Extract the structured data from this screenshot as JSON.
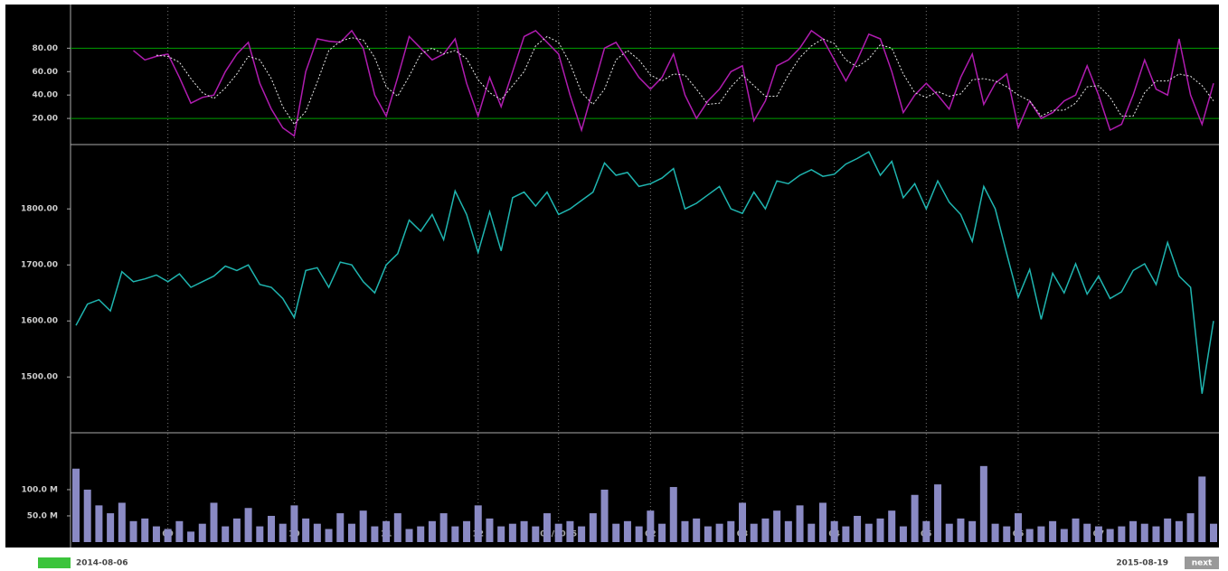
{
  "chart_data": [
    {
      "type": "line",
      "ylim": [
        0,
        115
      ],
      "yticks": [
        {
          "value": 20,
          "label": "20.00"
        },
        {
          "value": 40,
          "label": "40.00"
        },
        {
          "value": 60,
          "label": "60.00"
        },
        {
          "value": 80,
          "label": "80.00"
        }
      ],
      "reference_lines": [
        20,
        80
      ],
      "reference_color": "#00a000",
      "series": [
        {
          "color": "#b01cb0",
          "dashed": false,
          "values": [
            null,
            null,
            null,
            null,
            null,
            78,
            70,
            73,
            75,
            55,
            33,
            38,
            40,
            60,
            75,
            85,
            50,
            28,
            12,
            5,
            60,
            88,
            86,
            85,
            95,
            80,
            40,
            22,
            55,
            90,
            80,
            70,
            75,
            88,
            50,
            22,
            55,
            30,
            60,
            90,
            95,
            85,
            75,
            40,
            10,
            45,
            80,
            85,
            70,
            55,
            45,
            55,
            75,
            40,
            20,
            35,
            45,
            60,
            65,
            18,
            35,
            65,
            70,
            80,
            95,
            88,
            70,
            52,
            70,
            92,
            88,
            60,
            25,
            40,
            50,
            40,
            28,
            55,
            75,
            32,
            50,
            58,
            12,
            35,
            20,
            25,
            35,
            40,
            65,
            40,
            10,
            15,
            40,
            70,
            45,
            40,
            88,
            40,
            15,
            50
          ]
        },
        {
          "color": "#e8e8e8",
          "dashed": true,
          "values": [
            null,
            null,
            null,
            null,
            null,
            null,
            null,
            74,
            73,
            68,
            54,
            42,
            37,
            46,
            58,
            73,
            70,
            54,
            30,
            15,
            26,
            51,
            78,
            86,
            89,
            87,
            72,
            47,
            39,
            56,
            75,
            80,
            75,
            78,
            71,
            53,
            42,
            36,
            48,
            60,
            82,
            90,
            85,
            67,
            42,
            32,
            45,
            70,
            78,
            70,
            57,
            52,
            58,
            57,
            45,
            32,
            33,
            47,
            57,
            48,
            39,
            39,
            57,
            72,
            82,
            88,
            84,
            70,
            64,
            71,
            83,
            80,
            58,
            42,
            38,
            43,
            39,
            41,
            53,
            54,
            52,
            47,
            40,
            35,
            22,
            27,
            27,
            33,
            47,
            48,
            38,
            22,
            22,
            42,
            52,
            52,
            58,
            56,
            48,
            35
          ]
        }
      ]
    },
    {
      "type": "line",
      "ylim": [
        1402,
        1910
      ],
      "yticks": [
        {
          "value": 1500,
          "label": "1500.00"
        },
        {
          "value": 1600,
          "label": "1600.00"
        },
        {
          "value": 1700,
          "label": "1700.00"
        },
        {
          "value": 1800,
          "label": "1800.00"
        }
      ],
      "series": [
        {
          "color": "#1fb5b0",
          "dashed": false,
          "values": [
            1592,
            1630,
            1638,
            1618,
            1688,
            1670,
            1675,
            1682,
            1670,
            1684,
            1660,
            1670,
            1680,
            1698,
            1690,
            1700,
            1665,
            1660,
            1640,
            1606,
            1690,
            1695,
            1660,
            1705,
            1700,
            1670,
            1650,
            1700,
            1720,
            1780,
            1760,
            1790,
            1745,
            1832,
            1790,
            1722,
            1795,
            1725,
            1820,
            1830,
            1805,
            1830,
            1790,
            1800,
            1815,
            1830,
            1882,
            1860,
            1865,
            1840,
            1845,
            1855,
            1872,
            1800,
            1810,
            1825,
            1840,
            1800,
            1792,
            1830,
            1800,
            1850,
            1845,
            1860,
            1870,
            1858,
            1862,
            1880,
            1890,
            1902,
            1860,
            1885,
            1820,
            1845,
            1800,
            1850,
            1812,
            1790,
            1742,
            1840,
            1800,
            1720,
            1642,
            1692,
            1603,
            1685,
            1650,
            1702,
            1648,
            1680,
            1640,
            1652,
            1690,
            1702,
            1665,
            1740,
            1680,
            1660,
            1470,
            1600
          ]
        }
      ]
    },
    {
      "type": "bar",
      "ylim": [
        0,
        205
      ],
      "color": "#8a8ac4",
      "yticks": [
        {
          "value": 50,
          "label": "50.0 M"
        },
        {
          "value": 100,
          "label": "100.0 M"
        }
      ],
      "categories": [
        null,
        null,
        null,
        null,
        null,
        null,
        null,
        null,
        "09",
        null,
        null,
        null,
        null,
        null,
        null,
        null,
        null,
        null,
        null,
        "10",
        null,
        null,
        null,
        null,
        null,
        null,
        null,
        "11",
        null,
        null,
        null,
        null,
        null,
        null,
        null,
        "12",
        null,
        null,
        null,
        null,
        null,
        null,
        "01/2015",
        null,
        null,
        null,
        null,
        null,
        null,
        null,
        "02",
        null,
        null,
        null,
        null,
        null,
        null,
        null,
        "03",
        null,
        null,
        null,
        null,
        null,
        null,
        null,
        "04",
        null,
        null,
        null,
        null,
        null,
        null,
        null,
        "05",
        null,
        null,
        null,
        null,
        null,
        null,
        null,
        "06",
        null,
        null,
        null,
        null,
        null,
        null,
        "07",
        null,
        null,
        null,
        null,
        null,
        null,
        null,
        null,
        null,
        null
      ],
      "values": [
        140,
        100,
        70,
        55,
        75,
        40,
        45,
        30,
        25,
        40,
        20,
        35,
        75,
        30,
        45,
        65,
        30,
        50,
        35,
        70,
        45,
        35,
        25,
        55,
        35,
        60,
        30,
        40,
        55,
        25,
        30,
        40,
        55,
        30,
        40,
        70,
        45,
        30,
        35,
        40,
        30,
        55,
        35,
        40,
        30,
        55,
        100,
        35,
        40,
        30,
        60,
        35,
        105,
        40,
        45,
        30,
        35,
        40,
        75,
        35,
        45,
        60,
        40,
        70,
        35,
        75,
        40,
        30,
        50,
        35,
        45,
        60,
        30,
        90,
        40,
        110,
        35,
        45,
        40,
        145,
        35,
        30,
        55,
        25,
        30,
        40,
        25,
        45,
        35,
        30,
        25,
        30,
        40,
        35,
        30,
        45,
        40,
        55,
        125,
        35
      ]
    }
  ],
  "footer": {
    "range_start": "2014-08-06",
    "range_end": "2015-08-19",
    "next_button": "next"
  }
}
